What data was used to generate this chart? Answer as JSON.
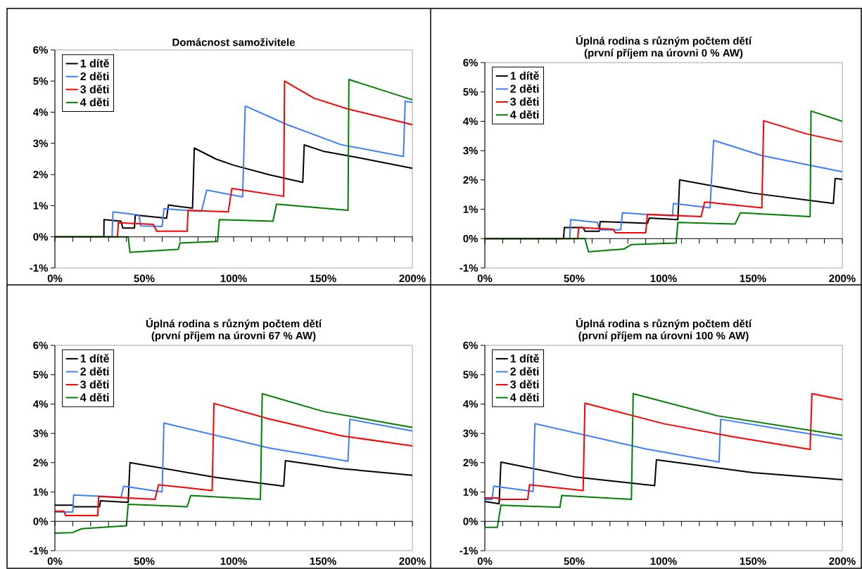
{
  "chart_data": [
    {
      "type": "line",
      "title": "Domácnost samoživitele",
      "xlim": [
        0,
        200
      ],
      "ylim": [
        -1,
        6
      ],
      "xticks": [
        {
          "value": 0,
          "label": "0%"
        },
        {
          "value": 10,
          "label": null
        },
        {
          "value": 20,
          "label": null
        },
        {
          "value": 30,
          "label": null
        },
        {
          "value": 40,
          "label": null
        },
        {
          "value": 50,
          "label": "50%"
        },
        {
          "value": 60,
          "label": null
        },
        {
          "value": 70,
          "label": null
        },
        {
          "value": 80,
          "label": null
        },
        {
          "value": 90,
          "label": null
        },
        {
          "value": 100,
          "label": "100%"
        },
        {
          "value": 110,
          "label": null
        },
        {
          "value": 120,
          "label": null
        },
        {
          "value": 130,
          "label": null
        },
        {
          "value": 140,
          "label": null
        },
        {
          "value": 150,
          "label": "150%"
        },
        {
          "value": 160,
          "label": null
        },
        {
          "value": 170,
          "label": null
        },
        {
          "value": 180,
          "label": null
        },
        {
          "value": 190,
          "label": null
        },
        {
          "value": 200,
          "label": "200%"
        }
      ],
      "yticks": [
        {
          "value": -1,
          "label": "-1%"
        },
        {
          "value": 0,
          "label": "0%"
        },
        {
          "value": 1,
          "label": "1%"
        },
        {
          "value": 2,
          "label": "2%"
        },
        {
          "value": 3,
          "label": "3%"
        },
        {
          "value": 4,
          "label": "4%"
        },
        {
          "value": 5,
          "label": "5%"
        },
        {
          "value": 6,
          "label": "6%"
        }
      ],
      "legend": "top left",
      "grid": false,
      "marker": "none",
      "ref_lines": [
        {
          "axis": "y",
          "value": 0,
          "color": "#000000"
        }
      ],
      "series": [
        {
          "name": "1 dítě",
          "color": "#000000",
          "x": [
            0,
            27.4,
            27.5,
            37,
            38,
            44.5,
            45,
            62.5,
            63.5,
            77,
            78,
            90,
            100,
            120,
            138.7,
            139.5,
            150,
            170,
            200
          ],
          "values": [
            0,
            0,
            0.55,
            0.5,
            0.28,
            0.28,
            0.7,
            0.6,
            1.02,
            0.92,
            2.85,
            2.5,
            2.3,
            1.99,
            1.75,
            2.95,
            2.75,
            2.54,
            2.2
          ]
        },
        {
          "name": "2 děti",
          "color": "#3d7fff",
          "x": [
            0,
            32,
            32.5,
            47,
            48,
            60,
            61,
            82,
            85,
            105,
            106.5,
            130,
            160,
            195,
            196,
            200
          ],
          "values": [
            0,
            0,
            0.8,
            0.7,
            0.35,
            0.33,
            0.9,
            0.82,
            1.5,
            1.28,
            4.2,
            3.6,
            2.96,
            2.58,
            4.35,
            4.32
          ]
        },
        {
          "name": "3 děti",
          "color": "#ff0000",
          "x": [
            0,
            35,
            35.5,
            55,
            57,
            74,
            74.5,
            97,
            99,
            128,
            128.5,
            145,
            163,
            200
          ],
          "values": [
            0,
            0,
            0.45,
            0.4,
            0.18,
            0.18,
            0.85,
            0.8,
            1.55,
            1.3,
            5.0,
            4.45,
            4.12,
            3.6
          ]
        },
        {
          "name": "4 děti",
          "color": "#008000",
          "x": [
            0,
            41,
            42,
            69,
            70,
            91,
            92,
            122,
            124,
            164,
            164.5,
            200
          ],
          "values": [
            0,
            0,
            -0.5,
            -0.4,
            -0.2,
            -0.15,
            0.55,
            0.5,
            1.05,
            0.85,
            5.05,
            4.4
          ]
        }
      ]
    },
    {
      "type": "line",
      "title": "Úplná rodina s různým počtem dětí",
      "subtitle": "(první příjem na úrovni 0 % AW)",
      "xlim": [
        0,
        200
      ],
      "ylim": [
        -1,
        6
      ],
      "xticks": [
        {
          "value": 0,
          "label": "0%"
        },
        {
          "value": 10,
          "label": null
        },
        {
          "value": 20,
          "label": null
        },
        {
          "value": 30,
          "label": null
        },
        {
          "value": 40,
          "label": null
        },
        {
          "value": 50,
          "label": "50%"
        },
        {
          "value": 60,
          "label": null
        },
        {
          "value": 70,
          "label": null
        },
        {
          "value": 80,
          "label": null
        },
        {
          "value": 90,
          "label": null
        },
        {
          "value": 100,
          "label": "100%"
        },
        {
          "value": 110,
          "label": null
        },
        {
          "value": 120,
          "label": null
        },
        {
          "value": 130,
          "label": null
        },
        {
          "value": 140,
          "label": null
        },
        {
          "value": 150,
          "label": "150%"
        },
        {
          "value": 160,
          "label": null
        },
        {
          "value": 170,
          "label": null
        },
        {
          "value": 180,
          "label": null
        },
        {
          "value": 190,
          "label": null
        },
        {
          "value": 200,
          "label": "200%"
        }
      ],
      "yticks": [
        {
          "value": -1,
          "label": "-1%"
        },
        {
          "value": 0,
          "label": "0%"
        },
        {
          "value": 1,
          "label": "1%"
        },
        {
          "value": 2,
          "label": "2%"
        },
        {
          "value": 3,
          "label": "3%"
        },
        {
          "value": 4,
          "label": "4%"
        },
        {
          "value": 5,
          "label": "5%"
        },
        {
          "value": 6,
          "label": "6%"
        }
      ],
      "legend": "top left",
      "grid": false,
      "marker": "none",
      "ref_lines": [
        {
          "axis": "y",
          "value": 0,
          "color": "#000000"
        }
      ],
      "series": [
        {
          "name": "1 dítě",
          "color": "#000000",
          "x": [
            0,
            44,
            44.5,
            55,
            56,
            64,
            64.5,
            91,
            92,
            108,
            109,
            150,
            195,
            196,
            200
          ],
          "values": [
            0,
            0,
            0.38,
            0.38,
            0.25,
            0.25,
            0.58,
            0.52,
            0.7,
            0.65,
            2.0,
            1.55,
            1.2,
            2.05,
            2.02
          ]
        },
        {
          "name": "2 děti",
          "color": "#3d7fff",
          "x": [
            0,
            47.5,
            48,
            63,
            64,
            76,
            77,
            91,
            105,
            105.5,
            126,
            128,
            155,
            200
          ],
          "values": [
            0,
            0,
            0.65,
            0.55,
            0.3,
            0.3,
            0.88,
            0.82,
            0.78,
            1.2,
            1.05,
            3.35,
            2.83,
            2.28
          ]
        },
        {
          "name": "3 děti",
          "color": "#ff0000",
          "x": [
            0,
            52,
            52.5,
            72,
            73,
            90,
            91,
            121,
            123,
            155,
            156,
            180,
            200
          ],
          "values": [
            0,
            0,
            0.38,
            0.32,
            0.2,
            0.2,
            0.83,
            0.75,
            1.25,
            1.05,
            4.02,
            3.57,
            3.3
          ]
        },
        {
          "name": "4 děti",
          "color": "#008000",
          "x": [
            0,
            56,
            58,
            78,
            82,
            107,
            108,
            140,
            143,
            182,
            182.5,
            200
          ],
          "values": [
            0,
            0,
            -0.45,
            -0.35,
            -0.2,
            -0.15,
            0.55,
            0.5,
            0.88,
            0.75,
            4.35,
            4.0
          ]
        }
      ]
    },
    {
      "type": "line",
      "title": "Úplná rodina s různým počtem dětí",
      "subtitle": "(první příjem na úrovni 67 % AW)",
      "xlim": [
        0,
        200
      ],
      "ylim": [
        -1,
        6
      ],
      "xticks": [
        {
          "value": 0,
          "label": "0%"
        },
        {
          "value": 10,
          "label": null
        },
        {
          "value": 20,
          "label": null
        },
        {
          "value": 30,
          "label": null
        },
        {
          "value": 40,
          "label": null
        },
        {
          "value": 50,
          "label": "50%"
        },
        {
          "value": 60,
          "label": null
        },
        {
          "value": 70,
          "label": null
        },
        {
          "value": 80,
          "label": null
        },
        {
          "value": 90,
          "label": null
        },
        {
          "value": 100,
          "label": "100%"
        },
        {
          "value": 110,
          "label": null
        },
        {
          "value": 120,
          "label": null
        },
        {
          "value": 130,
          "label": null
        },
        {
          "value": 140,
          "label": null
        },
        {
          "value": 150,
          "label": "150%"
        },
        {
          "value": 160,
          "label": null
        },
        {
          "value": 170,
          "label": null
        },
        {
          "value": 180,
          "label": null
        },
        {
          "value": 190,
          "label": null
        },
        {
          "value": 200,
          "label": "200%"
        }
      ],
      "yticks": [
        {
          "value": -1,
          "label": "-1%"
        },
        {
          "value": 0,
          "label": "0%"
        },
        {
          "value": 1,
          "label": "1%"
        },
        {
          "value": 2,
          "label": "2%"
        },
        {
          "value": 3,
          "label": "3%"
        },
        {
          "value": 4,
          "label": "4%"
        },
        {
          "value": 5,
          "label": "5%"
        },
        {
          "value": 6,
          "label": "6%"
        }
      ],
      "legend": "top left",
      "grid": false,
      "marker": "none",
      "ref_lines": [
        {
          "axis": "y",
          "value": 0,
          "color": "#000000"
        }
      ],
      "series": [
        {
          "name": "1 dítě",
          "color": "#000000",
          "x": [
            0,
            10,
            10.5,
            25,
            25.5,
            41,
            42,
            90,
            128,
            129,
            160,
            200
          ],
          "values": [
            0.55,
            0.55,
            0.5,
            0.5,
            0.7,
            0.65,
            2.0,
            1.5,
            1.2,
            2.07,
            1.8,
            1.57
          ]
        },
        {
          "name": "2 děti",
          "color": "#3d7fff",
          "x": [
            0,
            10,
            10.5,
            37,
            38.5,
            60,
            61,
            120,
            164,
            165,
            200
          ],
          "values": [
            0.32,
            0.32,
            0.9,
            0.82,
            1.2,
            1.0,
            3.35,
            2.5,
            2.05,
            3.48,
            3.08
          ]
        },
        {
          "name": "3 děti",
          "color": "#ff0000",
          "x": [
            0,
            5,
            6,
            24,
            24.5,
            56,
            58,
            88,
            89,
            120,
            160,
            200
          ],
          "values": [
            0.35,
            0.35,
            0.2,
            0.2,
            0.85,
            0.75,
            1.25,
            1.05,
            4.02,
            3.49,
            2.92,
            2.57
          ]
        },
        {
          "name": "4 děti",
          "color": "#008000",
          "x": [
            0,
            10,
            15,
            40,
            41,
            74,
            76,
            115,
            116,
            150,
            200
          ],
          "values": [
            -0.4,
            -0.38,
            -0.25,
            -0.15,
            0.58,
            0.5,
            0.88,
            0.75,
            4.35,
            3.75,
            3.2
          ]
        }
      ]
    },
    {
      "type": "line",
      "title": "Úplná rodina s různým počtem dětí",
      "subtitle": "(první příjem na úrovni 100 % AW)",
      "xlim": [
        0,
        200
      ],
      "ylim": [
        -1,
        6
      ],
      "xticks": [
        {
          "value": 0,
          "label": "0%"
        },
        {
          "value": 10,
          "label": null
        },
        {
          "value": 20,
          "label": null
        },
        {
          "value": 30,
          "label": null
        },
        {
          "value": 40,
          "label": null
        },
        {
          "value": 50,
          "label": "50%"
        },
        {
          "value": 60,
          "label": null
        },
        {
          "value": 70,
          "label": null
        },
        {
          "value": 80,
          "label": null
        },
        {
          "value": 90,
          "label": null
        },
        {
          "value": 100,
          "label": "100%"
        },
        {
          "value": 110,
          "label": null
        },
        {
          "value": 120,
          "label": null
        },
        {
          "value": 130,
          "label": null
        },
        {
          "value": 140,
          "label": null
        },
        {
          "value": 150,
          "label": "150%"
        },
        {
          "value": 160,
          "label": null
        },
        {
          "value": 170,
          "label": null
        },
        {
          "value": 180,
          "label": null
        },
        {
          "value": 190,
          "label": null
        },
        {
          "value": 200,
          "label": "200%"
        }
      ],
      "yticks": [
        {
          "value": -1,
          "label": "-1%"
        },
        {
          "value": 0,
          "label": "0%"
        },
        {
          "value": 1,
          "label": "1%"
        },
        {
          "value": 2,
          "label": "2%"
        },
        {
          "value": 3,
          "label": "3%"
        },
        {
          "value": 4,
          "label": "4%"
        },
        {
          "value": 5,
          "label": "5%"
        },
        {
          "value": 6,
          "label": "6%"
        }
      ],
      "legend": "top left",
      "grid": false,
      "marker": "none",
      "ref_lines": [
        {
          "axis": "y",
          "value": 0,
          "color": "#000000"
        }
      ],
      "series": [
        {
          "name": "1 dítě",
          "color": "#000000",
          "x": [
            0,
            8,
            9,
            50,
            95,
            96,
            150,
            200
          ],
          "values": [
            0.68,
            0.6,
            2.02,
            1.52,
            1.22,
            2.1,
            1.66,
            1.42
          ]
        },
        {
          "name": "2 děti",
          "color": "#3d7fff",
          "x": [
            0,
            4,
            5,
            27,
            28,
            90,
            131,
            132,
            200
          ],
          "values": [
            0.75,
            0.75,
            1.2,
            1.02,
            3.33,
            2.47,
            2.02,
            3.48,
            2.8
          ]
        },
        {
          "name": "3 děti",
          "color": "#ff0000",
          "x": [
            0,
            7,
            8,
            24,
            25,
            55,
            56,
            100,
            140,
            182,
            183,
            200
          ],
          "values": [
            0.8,
            0.8,
            0.75,
            0.75,
            1.25,
            1.05,
            4.03,
            3.33,
            2.87,
            2.45,
            4.35,
            4.15
          ]
        },
        {
          "name": "4 děti",
          "color": "#008000",
          "x": [
            0,
            7,
            9,
            42,
            43,
            82,
            83,
            130,
            200
          ],
          "values": [
            -0.2,
            -0.2,
            0.55,
            0.48,
            0.88,
            0.75,
            4.35,
            3.6,
            2.93
          ]
        }
      ]
    }
  ]
}
